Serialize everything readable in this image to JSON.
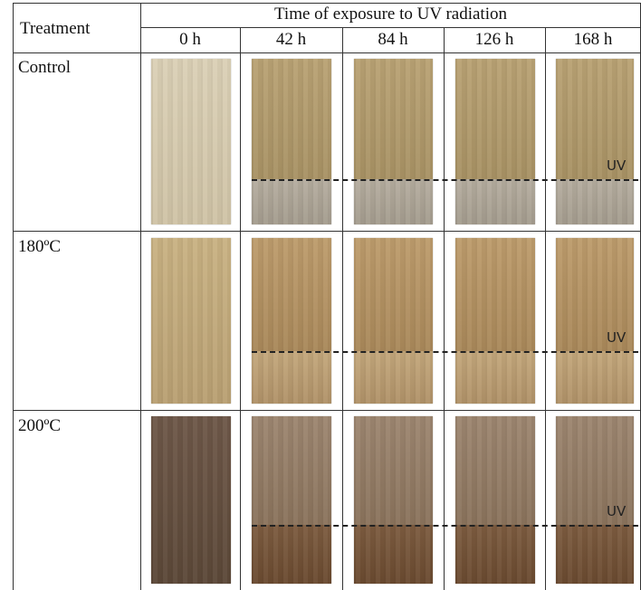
{
  "table": {
    "header": {
      "first": "Treatment",
      "group": "Time of exposure to UV radiation",
      "columns": [
        "0 h",
        "42 h",
        "84 h",
        "126 h",
        "168 h"
      ]
    },
    "rows": [
      {
        "treatment": "Control",
        "uv_label": "UV"
      },
      {
        "treatment": "180ºC",
        "uv_label": "UV"
      },
      {
        "treatment": "200ºC",
        "uv_label": "UV"
      }
    ]
  }
}
